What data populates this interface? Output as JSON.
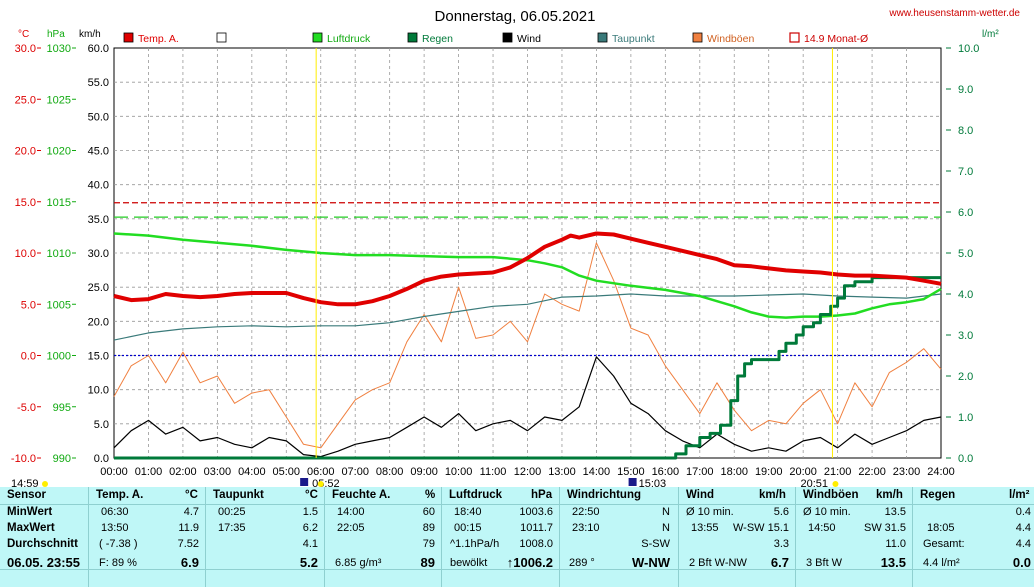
{
  "header": {
    "title": "Donnerstag, 06.05.2021",
    "website": "www.heusenstamm-wetter.de",
    "unit_temp": "°C",
    "unit_hpa": "hPa",
    "unit_kmh": "km/h",
    "unit_rain": "l/m²"
  },
  "legend": [
    {
      "label": "Temp. A.",
      "color": "#e00000",
      "type": "box"
    },
    {
      "label": "",
      "color": "#ffffff",
      "type": "box"
    },
    {
      "label": "Luftdruck",
      "color": "#22dd22",
      "type": "box"
    },
    {
      "label": "Regen",
      "color": "#007a3a",
      "type": "box"
    },
    {
      "label": "Wind",
      "color": "#000000",
      "type": "box"
    },
    {
      "label": "Taupunkt",
      "color": "#3a7a7a",
      "type": "box"
    },
    {
      "label": "Windböen",
      "color": "#f08040",
      "type": "box"
    },
    {
      "label": "14.9 Monat-Ø",
      "color": "#cc0000",
      "type": "outline"
    }
  ],
  "chart_data": {
    "type": "line",
    "x_labels": [
      "00:00",
      "01:00",
      "02:00",
      "03:00",
      "04:00",
      "05:00",
      "06:00",
      "07:00",
      "08:00",
      "09:00",
      "10:00",
      "11:00",
      "12:00",
      "13:00",
      "14:00",
      "15:00",
      "16:00",
      "17:00",
      "18:00",
      "19:00",
      "20:00",
      "21:00",
      "22:00",
      "23:00",
      "24:00"
    ],
    "axes": {
      "temp_c": {
        "ticks": [
          "30.0",
          "25.0",
          "20.0",
          "15.0",
          "10.0",
          "5.0",
          "0.0",
          "-5.0",
          "-10.0"
        ],
        "range": [
          -10,
          30
        ]
      },
      "pressure_hpa": {
        "ticks": [
          "1030",
          "1025",
          "1020",
          "1015",
          "1010",
          "1005",
          "1000",
          "995",
          "990"
        ],
        "range": [
          990,
          1030
        ]
      },
      "wind_kmh": {
        "ticks": [
          "60.0",
          "55.0",
          "50.0",
          "45.0",
          "40.0",
          "35.0",
          "30.0",
          "25.0",
          "20.0",
          "15.0",
          "10.0",
          "5.0",
          "0.0"
        ],
        "range": [
          0,
          60
        ]
      },
      "rain_lm2": {
        "ticks": [
          "10.0",
          "9.0",
          "8.0",
          "7.0",
          "6.0",
          "5.0",
          "4.0",
          "3.0",
          "2.0",
          "1.0",
          "0.0"
        ],
        "range": [
          0,
          10
        ]
      }
    },
    "reference_lines": {
      "temp_month_avg_c": 14.9,
      "pressure_ref_hpa": 1013.5,
      "wind_ref_kmh": 15.0
    },
    "series": [
      {
        "name": "Temp. A.",
        "axis": "temp_c",
        "color": "#e00000",
        "x": [
          0,
          0.5,
          1,
          1.5,
          2,
          2.5,
          3,
          3.5,
          4,
          4.5,
          5,
          5.5,
          6,
          6.5,
          7,
          7.5,
          8,
          8.5,
          9,
          9.5,
          10,
          10.5,
          11,
          11.5,
          12,
          12.5,
          13,
          13.25,
          13.5,
          14,
          14.5,
          15,
          15.5,
          16,
          16.5,
          17,
          17.5,
          18,
          18.5,
          19,
          19.5,
          20,
          20.5,
          21,
          21.5,
          22,
          22.5,
          23,
          23.5,
          24
        ],
        "y": [
          5.8,
          5.4,
          5.5,
          6.0,
          5.8,
          5.7,
          5.8,
          6.0,
          6.1,
          6.1,
          6.1,
          5.6,
          5.2,
          5.0,
          5.0,
          5.3,
          5.8,
          6.5,
          7.3,
          7.7,
          7.9,
          8.0,
          8.1,
          8.6,
          9.5,
          10.6,
          11.3,
          11.7,
          11.5,
          11.9,
          11.8,
          11.4,
          11.0,
          10.6,
          10.2,
          9.8,
          9.4,
          8.8,
          8.7,
          8.5,
          8.3,
          8.2,
          8.1,
          7.9,
          7.8,
          7.8,
          7.7,
          7.6,
          7.3,
          7.0
        ]
      },
      {
        "name": "Luftdruck",
        "axis": "pressure_hpa",
        "color": "#22dd22",
        "x": [
          0,
          1,
          2,
          3,
          4,
          5,
          6,
          7,
          8,
          9,
          10,
          11,
          12,
          12.5,
          13,
          13.5,
          14,
          15,
          16,
          17,
          18,
          18.5,
          19,
          19.5,
          20,
          20.5,
          21,
          21.5,
          22,
          22.5,
          23,
          23.5,
          24
        ],
        "y": [
          1011.9,
          1011.7,
          1011.3,
          1011.0,
          1010.7,
          1010.3,
          1010.0,
          1009.8,
          1009.8,
          1009.7,
          1009.6,
          1009.6,
          1009.3,
          1009.0,
          1008.6,
          1007.8,
          1007.3,
          1006.8,
          1006.4,
          1005.8,
          1004.8,
          1004.2,
          1003.8,
          1003.7,
          1003.8,
          1003.8,
          1003.9,
          1004.1,
          1004.6,
          1005.0,
          1005.2,
          1005.5,
          1006.5
        ]
      },
      {
        "name": "Regen",
        "axis": "rain_lm2",
        "color": "#007a3a",
        "x": [
          0,
          15.9,
          16.3,
          16.6,
          17,
          17.3,
          17.6,
          17.9,
          18.1,
          18.3,
          18.5,
          18.8,
          19,
          19.3,
          19.5,
          19.8,
          20,
          20.3,
          20.5,
          20.8,
          21.0,
          21.2,
          21.5,
          22,
          22.5,
          23,
          23.5,
          24
        ],
        "y": [
          0,
          0,
          0.1,
          0.3,
          0.5,
          0.6,
          0.8,
          1.4,
          2.0,
          2.3,
          2.4,
          2.4,
          2.4,
          2.6,
          2.8,
          3.0,
          3.2,
          3.3,
          3.5,
          3.7,
          3.9,
          4.2,
          4.3,
          4.4,
          4.4,
          4.4,
          4.4,
          4.4
        ]
      },
      {
        "name": "Taupunkt",
        "axis": "temp_c",
        "color": "#3a7a7a",
        "x": [
          0,
          1,
          2,
          3,
          4,
          5,
          6,
          7,
          8,
          9,
          10,
          11,
          12,
          13,
          14,
          15,
          16,
          17,
          18,
          19,
          20,
          21,
          22,
          23,
          24
        ],
        "y": [
          1.5,
          2.2,
          2.6,
          2.8,
          2.9,
          2.8,
          2.9,
          2.9,
          3.2,
          3.8,
          4.3,
          4.8,
          5.0,
          5.7,
          5.8,
          6.0,
          5.8,
          5.8,
          5.8,
          5.9,
          6.0,
          5.8,
          5.7,
          5.6,
          6.0
        ]
      },
      {
        "name": "Wind",
        "axis": "wind_kmh",
        "color": "#000000",
        "x": [
          0,
          0.5,
          1,
          1.5,
          2,
          2.5,
          3,
          3.5,
          4,
          4.5,
          5,
          5.5,
          6,
          6.5,
          7,
          7.5,
          8,
          8.5,
          9,
          9.5,
          10,
          10.5,
          11,
          11.5,
          12,
          12.5,
          13,
          13.5,
          14,
          14.5,
          15,
          15.5,
          16,
          16.5,
          17,
          17.5,
          18,
          18.5,
          19,
          19.5,
          20,
          20.5,
          21,
          21.5,
          22,
          22.5,
          23,
          23.5,
          24
        ],
        "y": [
          1.5,
          4.0,
          5.5,
          3.5,
          4.5,
          2.5,
          3.0,
          2.0,
          1.5,
          3.0,
          2.5,
          0.5,
          0.2,
          1.0,
          2.0,
          2.5,
          3.0,
          4.5,
          6.0,
          4.5,
          6.5,
          4.0,
          5.0,
          5.5,
          4.0,
          6.0,
          5.5,
          7.5,
          14.8,
          12.0,
          8.0,
          6.5,
          4.0,
          2.5,
          1.5,
          3.5,
          2.0,
          1.0,
          1.5,
          1.0,
          2.5,
          3.0,
          1.5,
          3.5,
          2.0,
          3.0,
          4.0,
          5.5,
          6.0
        ]
      },
      {
        "name": "Windböen",
        "axis": "wind_kmh",
        "color": "#f08040",
        "x": [
          0,
          0.5,
          1,
          1.5,
          2,
          2.5,
          3,
          3.5,
          4,
          4.5,
          5,
          5.5,
          6,
          6.5,
          7,
          7.5,
          8,
          8.5,
          9,
          9.5,
          10,
          10.5,
          11,
          11.5,
          12,
          12.5,
          13,
          13.5,
          14,
          14.5,
          15,
          15.5,
          16,
          16.5,
          17,
          17.5,
          18,
          18.5,
          19,
          19.5,
          20,
          20.5,
          21,
          21.5,
          22,
          22.5,
          23,
          23.5,
          24
        ],
        "y": [
          9.0,
          13.5,
          15.0,
          11.0,
          15.5,
          11.0,
          12.0,
          8.0,
          9.5,
          10.0,
          6.0,
          2.0,
          1.5,
          5.0,
          8.5,
          10.0,
          11.0,
          17.0,
          21.0,
          17.0,
          25.0,
          17.5,
          18.0,
          20.0,
          17.0,
          24.0,
          22.5,
          21.5,
          31.5,
          26.0,
          19.0,
          18.0,
          13.5,
          10.0,
          6.5,
          11.0,
          7.0,
          4.0,
          5.5,
          5.0,
          8.0,
          10.0,
          5.0,
          11.0,
          7.5,
          12.5,
          14.0,
          16.0,
          13.0
        ]
      }
    ],
    "markers": {
      "sunrise": "05:52",
      "sunset": "20:51",
      "left_time": "14:59",
      "moon_time": "15:03"
    }
  },
  "summary": {
    "columns": [
      {
        "title": "Sensor",
        "unit": ""
      },
      {
        "title": "Temp. A.",
        "unit": "°C"
      },
      {
        "title": "Taupunkt",
        "unit": "°C"
      },
      {
        "title": "Feuchte A.",
        "unit": "%"
      },
      {
        "title": "Luftdruck",
        "unit": "hPa"
      },
      {
        "title": "Windrichtung",
        "unit": ""
      },
      {
        "title": "Wind",
        "unit": "km/h"
      },
      {
        "title": "Windböen",
        "unit": "km/h"
      },
      {
        "title": "Regen",
        "unit": "l/m²"
      }
    ],
    "row_labels": [
      "MinWert",
      "MaxWert",
      "Durchschnitt"
    ],
    "footer_label": "06.05. 23:55",
    "temp": {
      "min_time": "06:30",
      "min": "4.7",
      "max_time": "13:50",
      "max": "11.9",
      "avg_note": "( -7.38 )",
      "avg": "7.52",
      "foot_note": "F: 89 %",
      "foot": "6.9"
    },
    "dew": {
      "min_time": "00:25",
      "min": "1.5",
      "max_time": "17:35",
      "max": "6.2",
      "avg": "4.1",
      "foot": "5.2"
    },
    "hum": {
      "min_time": "14:00",
      "min": "60",
      "max_time": "22:05",
      "max": "89",
      "avg": "79",
      "foot_note": "6.85 g/m³",
      "foot": "89"
    },
    "press": {
      "min_time": "18:40",
      "min": "1003.6",
      "max_time": "00:15",
      "max": "1011.7",
      "avg_note": "^1.1hPa/h",
      "avg": "1008.0",
      "foot_note": "bewölkt",
      "foot": "↑1006.2"
    },
    "dir": {
      "min_time": "22:50",
      "min": "N",
      "max_time": "23:10",
      "max": "N",
      "avg": "S-SW",
      "foot_note": "289 °",
      "foot": "W-NW"
    },
    "wind": {
      "min_label": "Ø 10 min.",
      "min": "5.6",
      "max_time": "13:55",
      "max_dir": "W-SW",
      "max": "15.1",
      "avg": "3.3",
      "foot_note": "2 Bft W-NW",
      "foot": "6.7"
    },
    "gust": {
      "min_label": "Ø 10 min.",
      "min": "13.5",
      "max_time": "14:50",
      "max_dir": "SW",
      "max": "31.5",
      "avg": "11.0",
      "foot_note": "3 Bft W",
      "foot": "13.5"
    },
    "rain": {
      "min": "0.4",
      "max_time": "18:05",
      "max_label": "Gesamt:",
      "max": "4.4",
      "foot_note": "4.4 l/m²",
      "foot": "0.0"
    }
  }
}
